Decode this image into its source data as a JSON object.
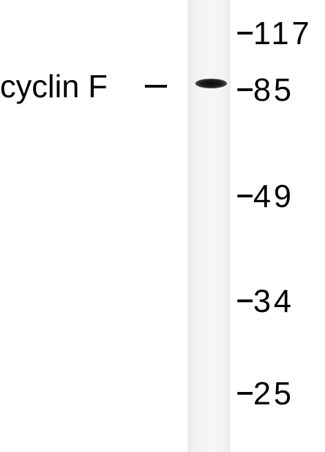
{
  "blot": {
    "protein_label": "cyclin F",
    "lane_color": "#f4f4f5",
    "band_color": "#111111",
    "markers": [
      {
        "label": "117"
      },
      {
        "label": "85"
      },
      {
        "label": "49"
      },
      {
        "label": "34"
      },
      {
        "label": "25"
      }
    ]
  }
}
